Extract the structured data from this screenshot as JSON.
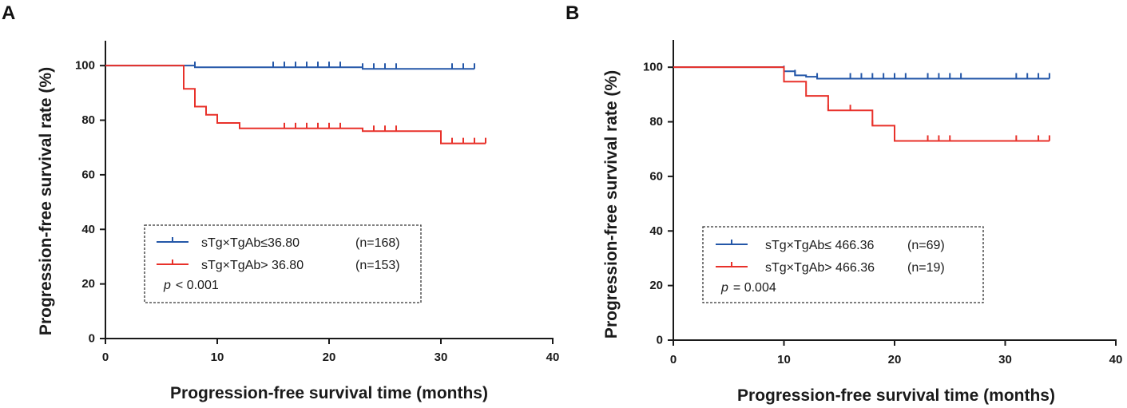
{
  "colors": {
    "blue": "#2457a8",
    "red": "#e8312a",
    "axis": "#1a1a1a"
  },
  "chart_data": [
    {
      "type": "line",
      "panel_label": "A",
      "title": "",
      "xlabel": "Progression-free survival time (months)",
      "ylabel": "Progression-free survival rate (%)",
      "xlim": [
        0,
        40
      ],
      "ylim": [
        0,
        110
      ],
      "xticks": [
        0,
        10,
        20,
        30,
        40
      ],
      "yticks": [
        0,
        20,
        40,
        60,
        80,
        100
      ],
      "grid": false,
      "legend_position": "bottom-left",
      "p_value": {
        "italic": "p",
        "text": "< 0.001"
      },
      "series": [
        {
          "name": "sTg×TgAb≤36.80",
          "n_label": "(n=168)",
          "color_key": "blue",
          "end_x": 33,
          "steps": [
            [
              0,
              100
            ],
            [
              8,
              99.4
            ],
            [
              23,
              98.8
            ]
          ],
          "censors": [
            8,
            15,
            16,
            17,
            18,
            19,
            20,
            21,
            23,
            24,
            25,
            26,
            31,
            32,
            33
          ]
        },
        {
          "name": "sTg×TgAb> 36.80",
          "n_label": "(n=153)",
          "color_key": "red",
          "end_x": 34,
          "steps": [
            [
              0,
              100
            ],
            [
              7,
              91.5
            ],
            [
              8,
              85
            ],
            [
              9,
              82
            ],
            [
              10,
              79
            ],
            [
              12,
              77
            ],
            [
              23,
              76
            ],
            [
              30,
              71.5
            ]
          ],
          "censors": [
            16,
            17,
            18,
            19,
            20,
            21,
            24,
            25,
            26,
            31,
            32,
            33,
            34
          ]
        }
      ]
    },
    {
      "type": "line",
      "panel_label": "B",
      "title": "",
      "xlabel": "Progression-free survival time (months)",
      "ylabel": "Progression-free survival rate (%)",
      "xlim": [
        0,
        40
      ],
      "ylim": [
        0,
        110
      ],
      "xticks": [
        0,
        10,
        20,
        30,
        40
      ],
      "yticks": [
        0,
        20,
        40,
        60,
        80,
        100
      ],
      "grid": false,
      "legend_position": "bottom-left",
      "p_value": {
        "italic": "p",
        "text": "= 0.004"
      },
      "series": [
        {
          "name": "sTg×TgAb≤ 466.36",
          "n_label": "(n=69)",
          "color_key": "blue",
          "end_x": 34,
          "steps": [
            [
              0,
              100
            ],
            [
              10,
              98.5
            ],
            [
              11,
              97
            ],
            [
              12,
              96.5
            ],
            [
              13,
              95.8
            ]
          ],
          "censors": [
            10,
            11,
            13,
            16,
            17,
            18,
            19,
            20,
            21,
            23,
            24,
            25,
            26,
            31,
            32,
            33,
            34
          ]
        },
        {
          "name": "sTg×TgAb> 466.36",
          "n_label": "(n=19)",
          "color_key": "red",
          "end_x": 34,
          "steps": [
            [
              0,
              100
            ],
            [
              10,
              94.7
            ],
            [
              12,
              89.5
            ],
            [
              14,
              84.2
            ],
            [
              18,
              78.6
            ],
            [
              20,
              73
            ]
          ],
          "censors": [
            10,
            14,
            16,
            18,
            23,
            24,
            25,
            31,
            33,
            34
          ]
        }
      ]
    }
  ]
}
